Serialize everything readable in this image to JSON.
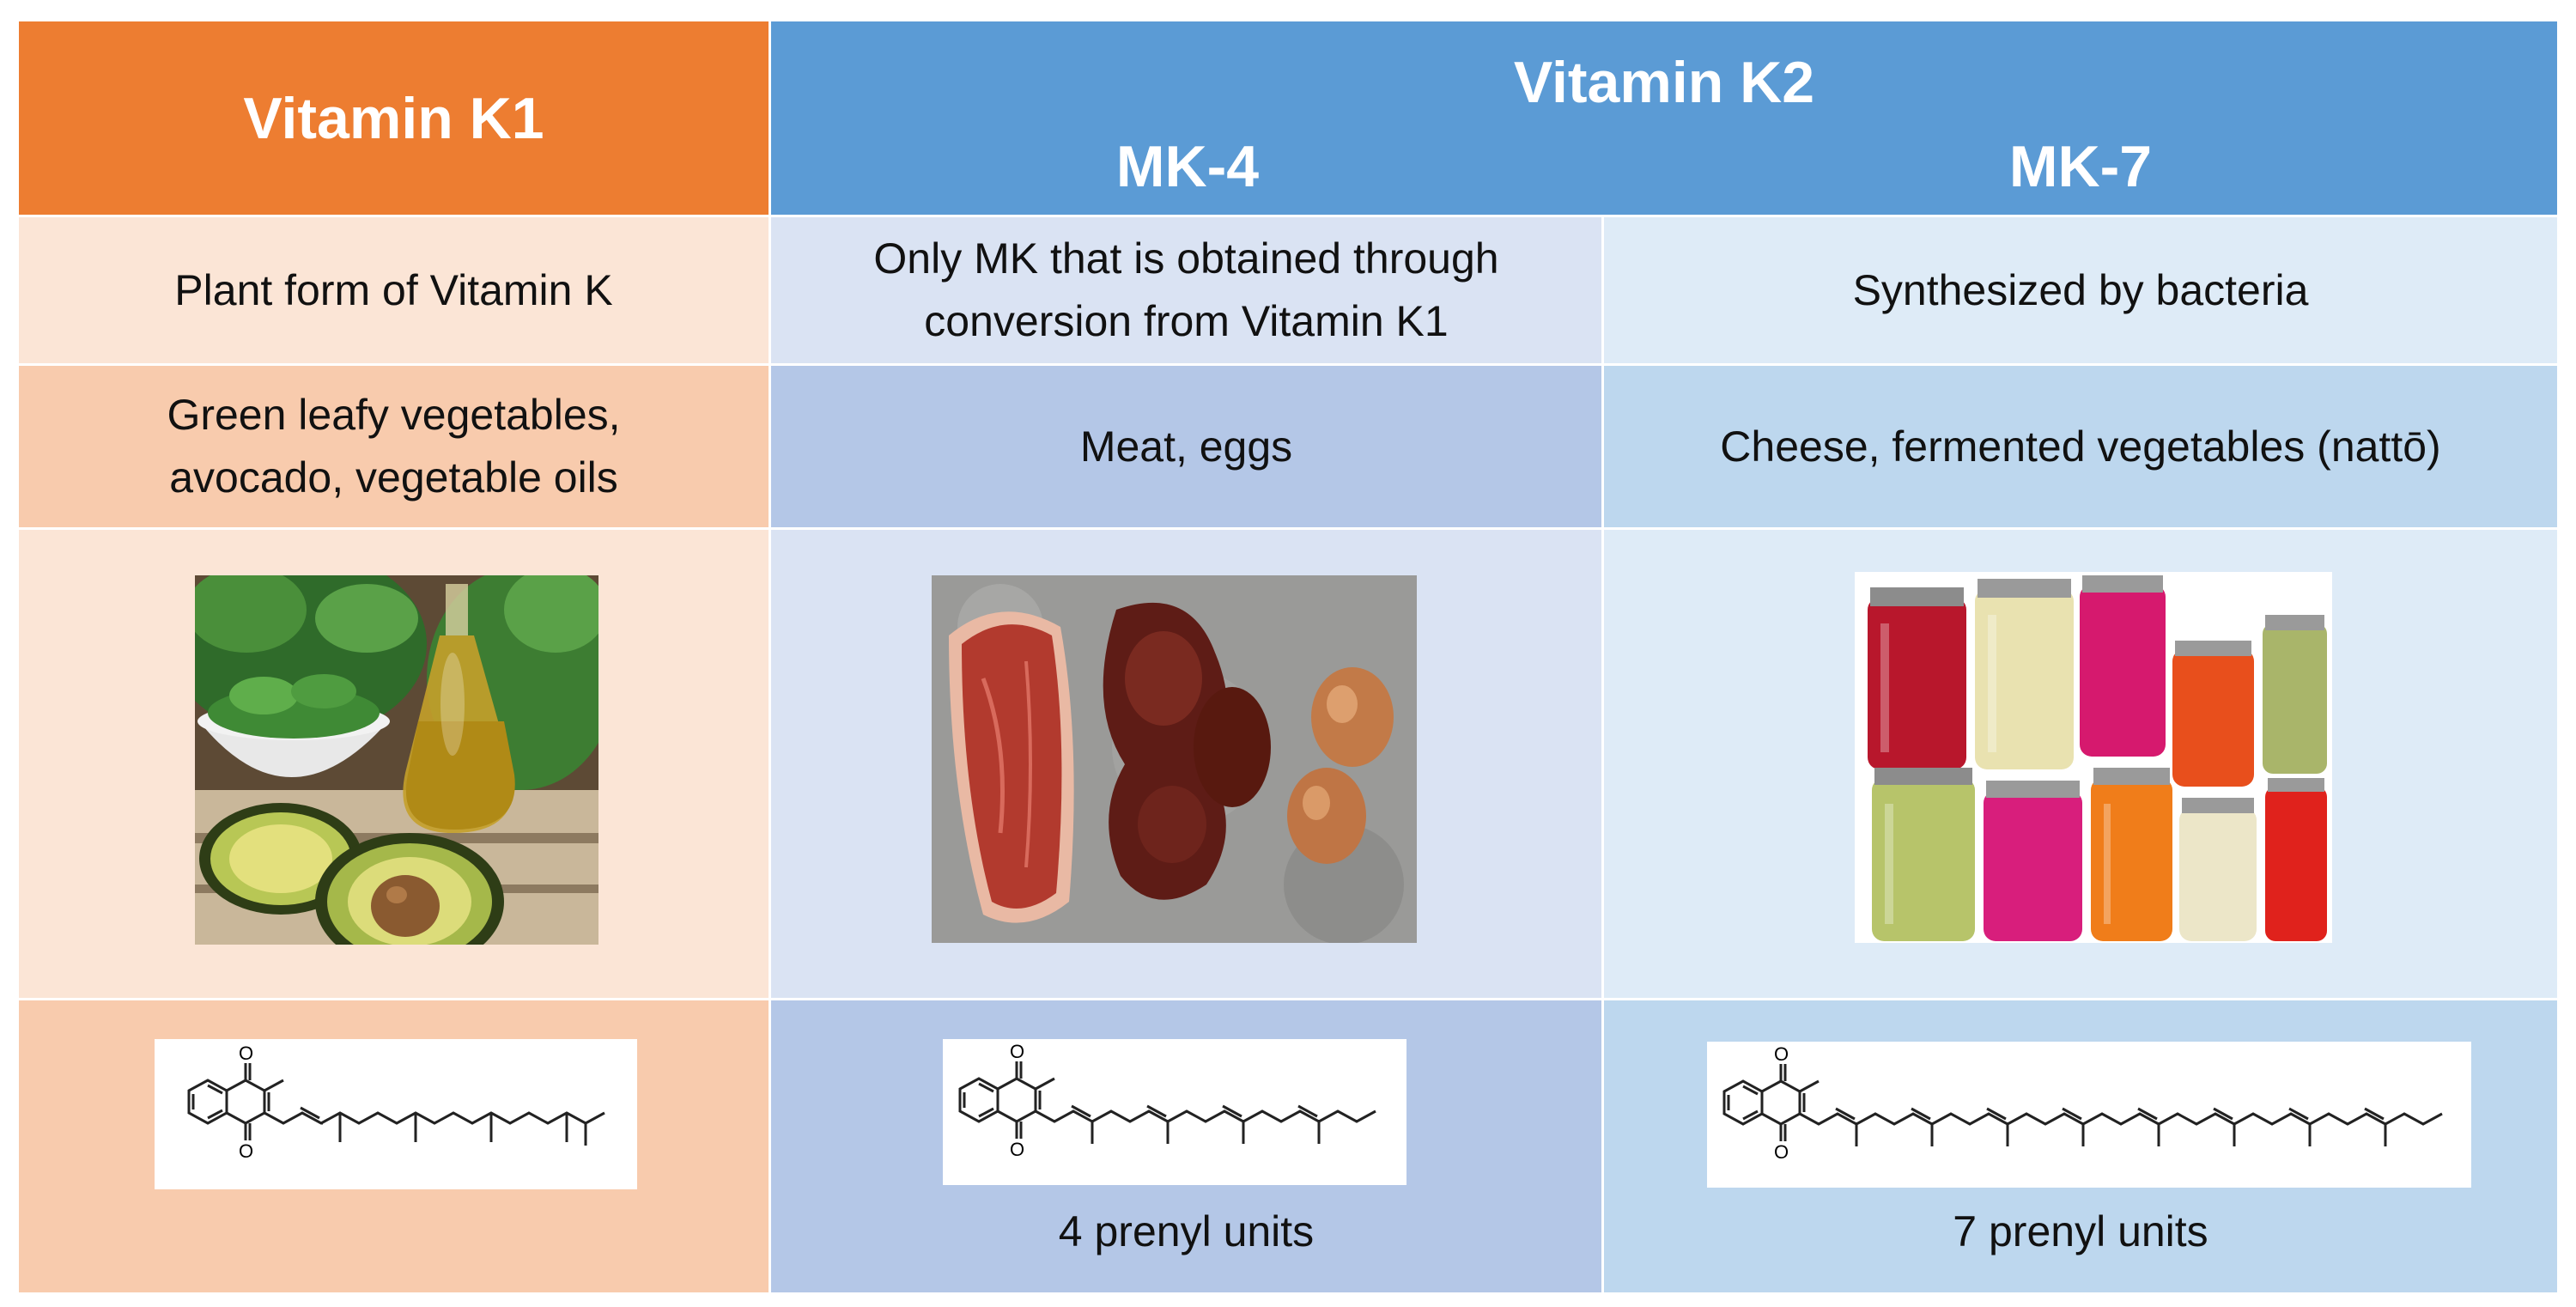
{
  "header": {
    "k1_title": "Vitamin K1",
    "k2_title": "Vitamin K2",
    "mk4_title": "MK-4",
    "mk7_title": "MK-7"
  },
  "rows": {
    "description": {
      "k1": "Plant form of Vitamin K",
      "mk4_line1": "Only MK that is obtained through",
      "mk4_line2": "conversion from Vitamin K1",
      "mk7": "Synthesized by bacteria"
    },
    "sources": {
      "k1_line1": "Green leafy vegetables,",
      "k1_line2": "avocado, vegetable oils",
      "mk4": "Meat, eggs",
      "mk7": "Cheese, fermented vegetables (nattō)"
    },
    "structure": {
      "mk4_caption": "4 prenyl units",
      "mk7_caption": "7 prenyl units"
    }
  },
  "colors": {
    "k1_header": "#ED7D31",
    "k2_header": "#5B9BD5",
    "k1_light": "#FBE5D6",
    "k1_mid": "#F8CBAD",
    "mk4_light": "#DAE3F3",
    "mk4_mid": "#B4C7E7",
    "mk7_light": "#DEEBF7",
    "mk7_mid": "#BDD7EE"
  },
  "images": {
    "k1_photo": "leafy-greens-avocado-oil-photo",
    "mk4_photo": "steak-liver-eggs-photo",
    "mk7_photo": "fermented-vegetable-jars-photo",
    "k1_structure": "phylloquinone-structure",
    "mk4_structure": "menaquinone-4-structure",
    "mk7_structure": "menaquinone-7-structure"
  }
}
